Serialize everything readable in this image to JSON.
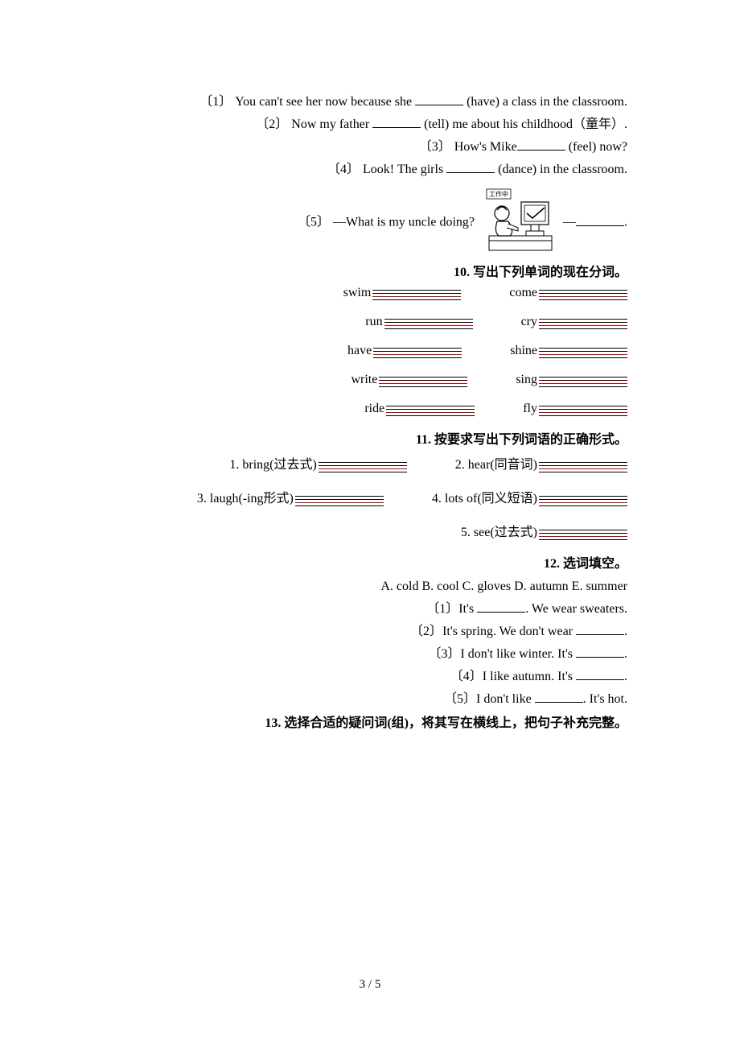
{
  "q1_4": {
    "items": [
      {
        "num": "〔1〕",
        "pre": "You can't see her now because she ",
        "post": " (have) a class in the classroom."
      },
      {
        "num": "〔2〕",
        "pre": "Now my father ",
        "post": " (tell) me about his childhood（童年）."
      },
      {
        "num": "〔3〕",
        "pre": "How's Mike",
        "post": " (feel) now?"
      },
      {
        "num": "〔4〕",
        "pre": "Look! The girls ",
        "post": " (dance) in the classroom."
      }
    ]
  },
  "q5": {
    "num": "〔5〕",
    "pre": "—What is my uncle doing?  ",
    "dash": "—",
    "post": "."
  },
  "illustration": {
    "banner": "工作中",
    "desc": "person at computer"
  },
  "s10": {
    "title": "10. 写出下列单词的现在分词。",
    "pairs": [
      [
        "swim",
        "come"
      ],
      [
        "run",
        "cry"
      ],
      [
        "have",
        "shine"
      ],
      [
        "write",
        "sing"
      ],
      [
        "ride",
        "fly"
      ]
    ]
  },
  "s11": {
    "title": "11. 按要求写出下列词语的正确形式。",
    "items": [
      {
        "num": "1.",
        "word": "bring",
        "paren": "(过去式)"
      },
      {
        "num": "2.",
        "word": "hear",
        "paren": "(同音词)"
      },
      {
        "num": "3.",
        "word": "laugh",
        "paren": "(-ing形式)"
      },
      {
        "num": "4.",
        "word": "lots of",
        "paren": "(同义短语)"
      },
      {
        "num": "5.",
        "word": "see",
        "paren": "(过去式)"
      }
    ]
  },
  "s12": {
    "title": "12. 选词填空。",
    "options": "A. cold  B. cool  C. gloves  D. autumn  E. summer",
    "items": [
      {
        "num": "〔1〕",
        "pre": "It's ",
        "post": ". We wear sweaters."
      },
      {
        "num": "〔2〕",
        "pre": "It's spring. We don't wear ",
        "post": "."
      },
      {
        "num": "〔3〕",
        "pre": "I don't like winter. It's ",
        "post": "."
      },
      {
        "num": "〔4〕",
        "pre": "I like autumn. It's ",
        "post": "."
      },
      {
        "num": "〔5〕",
        "pre": "I don't like ",
        "post": ". It's hot."
      }
    ]
  },
  "s13": {
    "title": "13. 选择合适的疑问词(组)，将其写在横线上，把句子补充完整。"
  },
  "pagenum": "3 / 5",
  "colors": {
    "text": "#000000",
    "red_line": "#cc0000",
    "background": "#ffffff"
  }
}
